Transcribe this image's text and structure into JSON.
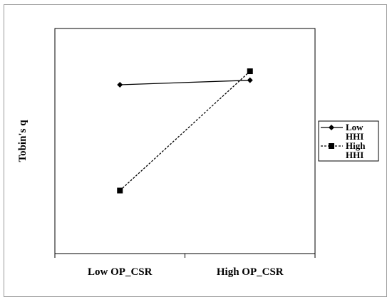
{
  "chart_data": {
    "type": "line",
    "title": "",
    "xlabel": "",
    "ylabel": "Tobin's q",
    "categories": [
      "Low OP_CSR",
      "High OP_CSR"
    ],
    "series": [
      {
        "name_lines": [
          "Low",
          "HHI"
        ],
        "values": [
          0.75,
          0.77
        ],
        "marker": "diamond",
        "line_style": "solid"
      },
      {
        "name_lines": [
          "High",
          "HHI"
        ],
        "values": [
          0.28,
          0.81
        ],
        "marker": "square",
        "line_style": "dashed"
      }
    ],
    "ylim": [
      0,
      1
    ],
    "y_ticks_shown": false,
    "grid": false,
    "legend_position": "right",
    "colors": {
      "series": "#000000",
      "frame": "#9a9a9a",
      "plot_border": "#000000"
    }
  }
}
